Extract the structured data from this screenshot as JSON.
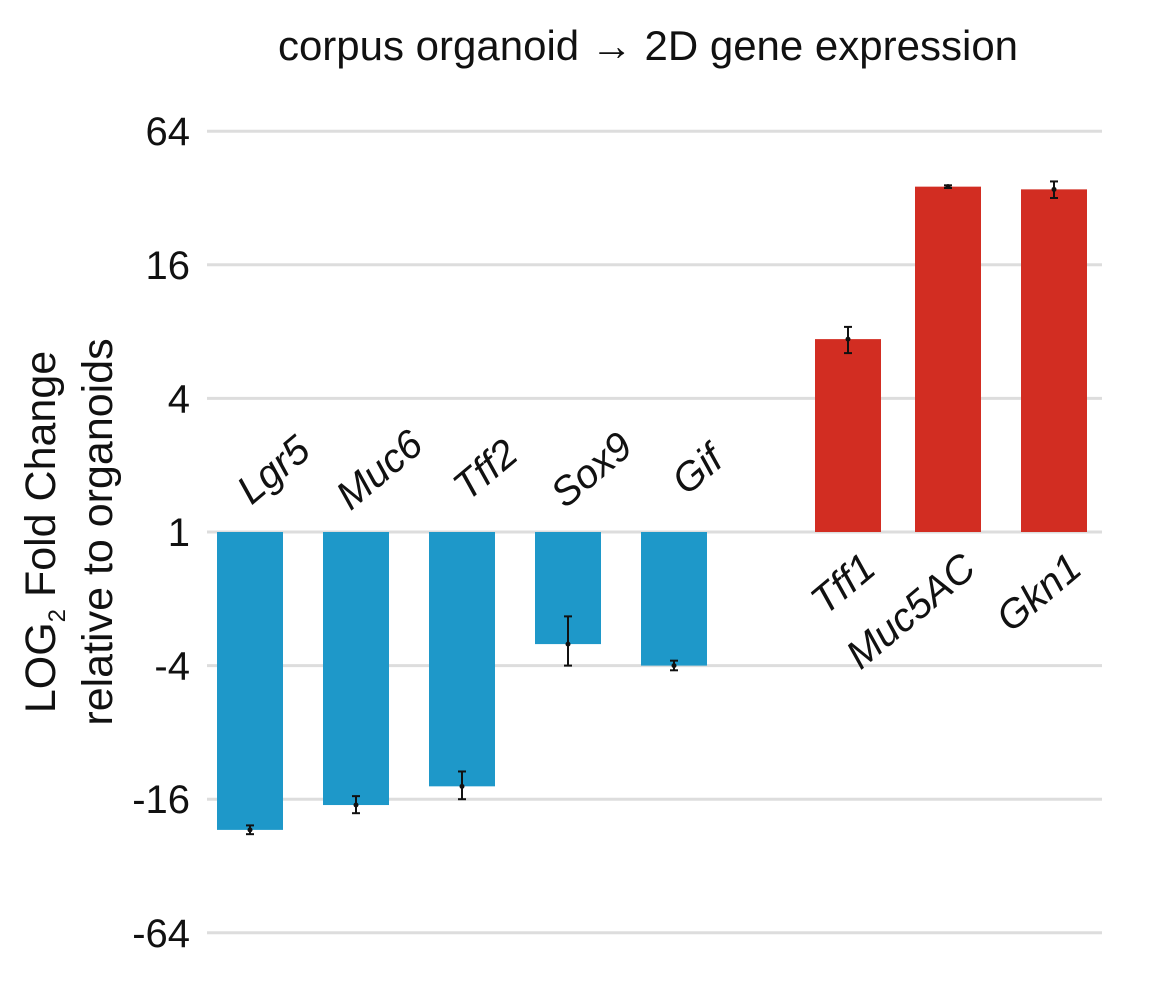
{
  "chart_data": {
    "type": "bar",
    "title": "corpus organoid → 2D gene expression",
    "ylabel": {
      "line1_main": "LOG",
      "line1_sub": "2",
      "line1_rest": " Fold Change",
      "line2": "relative to organoids"
    },
    "y_scale": "log2",
    "y_ticks": [
      {
        "value": 64,
        "label": "64"
      },
      {
        "value": 16,
        "label": "16"
      },
      {
        "value": 4,
        "label": "4"
      },
      {
        "value": 1,
        "label": "1"
      },
      {
        "value": -4,
        "label": "-4"
      },
      {
        "value": -16,
        "label": "-16"
      },
      {
        "value": -64,
        "label": "-64"
      }
    ],
    "ylim": [
      -64,
      64
    ],
    "grid": true,
    "categories": [
      "Lgr5",
      "Muc6",
      "Tff2",
      "Sox9",
      "Gif",
      "Tff1",
      "Muc5AC",
      "Gkn1"
    ],
    "values": [
      -22,
      -17,
      -14,
      -3.2,
      -4.0,
      7.4,
      36,
      35
    ],
    "errors": [
      1.0,
      1.5,
      2.0,
      0.8,
      0.2,
      1.0,
      0.5,
      3.0
    ],
    "colors": {
      "down": "#1e98c9",
      "up": "#d22d22",
      "grid": "#dddddd",
      "error": "#111111"
    }
  }
}
